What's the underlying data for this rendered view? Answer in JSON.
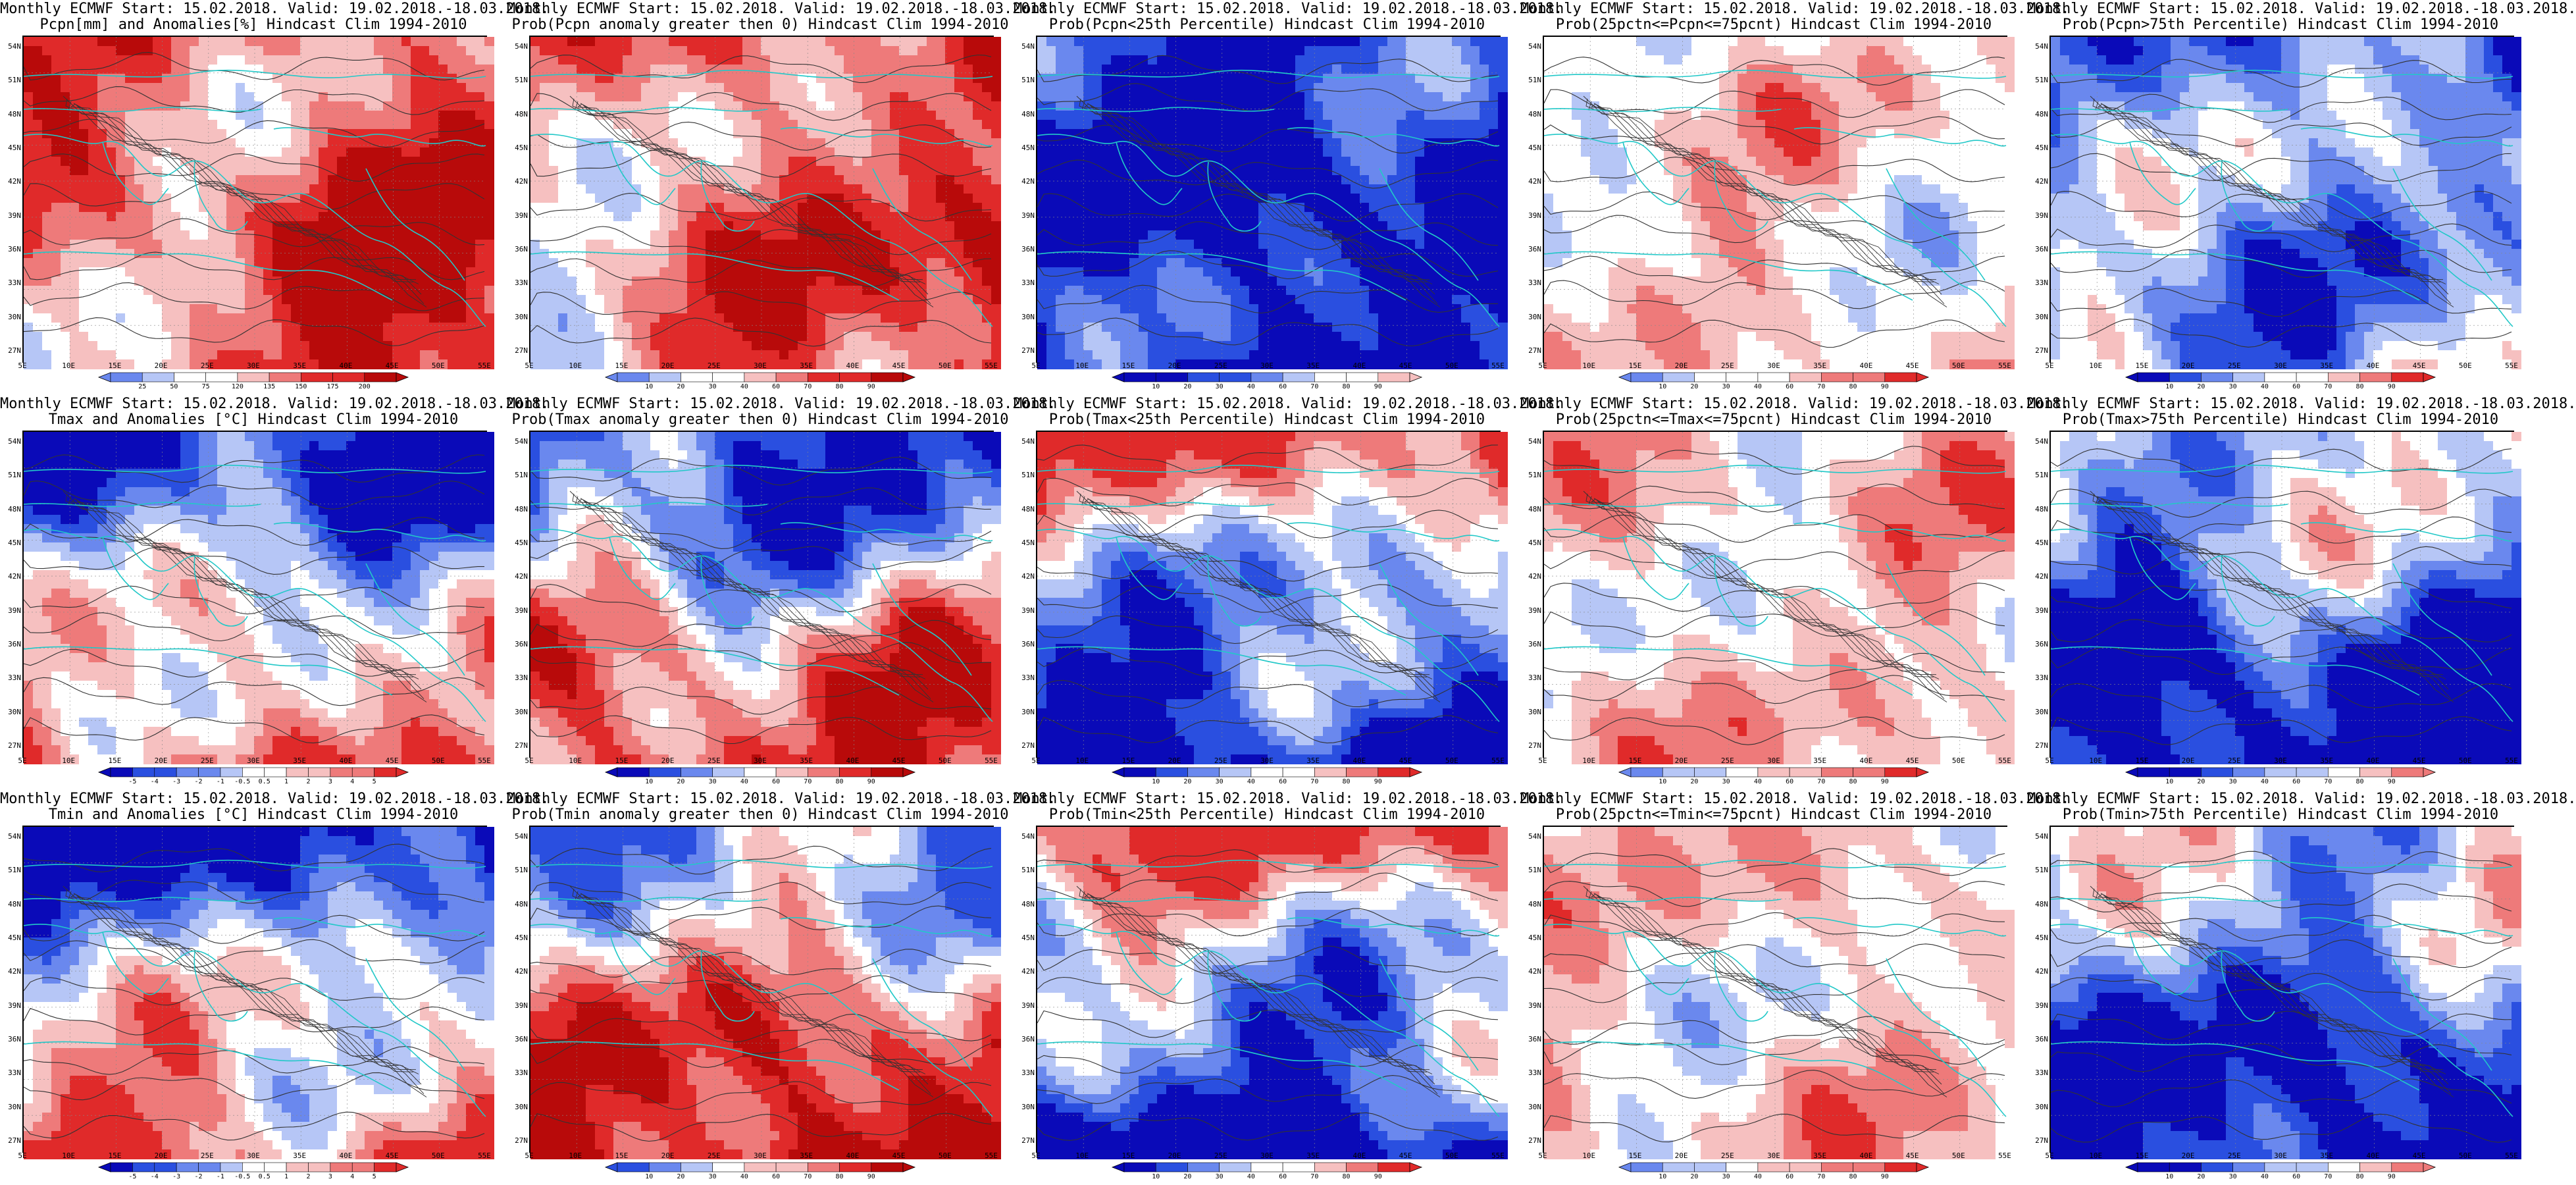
{
  "panels": [
    {
      "line1": "Monthly ECMWF Start: 15.02.2018. Valid: 19.02.2018.-18.03.2018.",
      "line2": "Pcpn[mm] and Anomalies[%] Hindcast Clim 1994-2010",
      "scheme": "pcpn_anom",
      "cbar_labels": [
        "25",
        "50",
        "75",
        "120",
        "135",
        "150",
        "175",
        "200"
      ]
    },
    {
      "line1": "Monthly ECMWF Start: 15.02.2018. Valid: 19.02.2018.-18.03.2018.",
      "line2": "Prob(Pcpn anomaly greater then 0) Hindcast Clim 1994-2010",
      "scheme": "prob_red",
      "cbar_labels": [
        "10",
        "20",
        "30",
        "40",
        "60",
        "70",
        "80",
        "90"
      ]
    },
    {
      "line1": "Monthly ECMWF Start: 15.02.2018. Valid: 19.02.2018.-18.03.2018.",
      "line2": "Prob(Pcpn<25th Percentile) Hindcast Clim 1994-2010",
      "scheme": "prob_blue",
      "cbar_labels": [
        "10",
        "20",
        "30",
        "40",
        "60",
        "70",
        "80",
        "90"
      ]
    },
    {
      "line1": "Monthly ECMWF Start: 15.02.2018. Valid: 19.02.2018.-18.03.2018.",
      "line2": "Prob(25pctn<=Pcpn<=75pcnt) Hindcast Clim 1994-2010",
      "scheme": "prob_mixed_light",
      "cbar_labels": [
        "10",
        "20",
        "30",
        "40",
        "60",
        "70",
        "80",
        "90"
      ]
    },
    {
      "line1": "Monthly ECMWF Start: 15.02.2018. Valid: 19.02.2018.-18.03.2018.",
      "line2": "Prob(Pcpn>75th Percentile) Hindcast Clim 1994-2010",
      "scheme": "prob_blue_red",
      "cbar_labels": [
        "10",
        "20",
        "30",
        "40",
        "60",
        "70",
        "80",
        "90"
      ]
    },
    {
      "line1": "Monthly ECMWF Start: 15.02.2018. Valid: 19.02.2018.-18.03.2018.",
      "line2": "Tmax and Anomalies [°C] Hindcast Clim 1994-2010",
      "scheme": "temp_anom",
      "cbar_labels": [
        "-5",
        "-4",
        "-3",
        "-2",
        "-1",
        "-0.5",
        "0.5",
        "1",
        "2",
        "3",
        "4",
        "5"
      ]
    },
    {
      "line1": "Monthly ECMWF Start: 15.02.2018. Valid: 19.02.2018.-18.03.2018.",
      "line2": "Prob(Tmax anomaly greater then 0) Hindcast Clim 1994-2010",
      "scheme": "temp_prob",
      "cbar_labels": [
        "10",
        "20",
        "30",
        "40",
        "60",
        "70",
        "80",
        "90"
      ]
    },
    {
      "line1": "Monthly ECMWF Start: 15.02.2018. Valid: 19.02.2018.-18.03.2018.",
      "line2": "Prob(Tmax<25th Percentile) Hindcast Clim 1994-2010",
      "scheme": "cold_low",
      "cbar_labels": [
        "10",
        "20",
        "30",
        "40",
        "60",
        "70",
        "80",
        "90"
      ]
    },
    {
      "line1": "Monthly ECMWF Start: 15.02.2018. Valid: 19.02.2018.-18.03.2018.",
      "line2": "Prob(25pctn<=Tmax<=75pcnt) Hindcast Clim 1994-2010",
      "scheme": "mid_mixed",
      "cbar_labels": [
        "10",
        "20",
        "30",
        "40",
        "60",
        "70",
        "80",
        "90"
      ]
    },
    {
      "line1": "Monthly ECMWF Start: 15.02.2018. Valid: 19.02.2018.-18.03.2018.",
      "line2": "Prob(Tmax>75th Percentile) Hindcast Clim 1994-2010",
      "scheme": "hot_high",
      "cbar_labels": [
        "10",
        "20",
        "30",
        "40",
        "60",
        "70",
        "80",
        "90"
      ]
    },
    {
      "line1": "Monthly ECMWF Start: 15.02.2018. Valid: 19.02.2018.-18.03.2018.",
      "line2": "Tmin and Anomalies [°C] Hindcast Clim 1994-2010",
      "scheme": "temp_anom",
      "cbar_labels": [
        "-5",
        "-4",
        "-3",
        "-2",
        "-1",
        "-0.5",
        "0.5",
        "1",
        "2",
        "3",
        "4",
        "5"
      ]
    },
    {
      "line1": "Monthly ECMWF Start: 15.02.2018. Valid: 19.02.2018.-18.03.2018.",
      "line2": "Prob(Tmin anomaly greater then 0) Hindcast Clim 1994-2010",
      "scheme": "temp_prob_strong",
      "cbar_labels": [
        "10",
        "20",
        "30",
        "40",
        "60",
        "70",
        "80",
        "90"
      ]
    },
    {
      "line1": "Monthly ECMWF Start: 15.02.2018. Valid: 19.02.2018.-18.03.2018.",
      "line2": "Prob(Tmin<25th Percentile) Hindcast Clim 1994-2010",
      "scheme": "cold_low",
      "cbar_labels": [
        "10",
        "20",
        "30",
        "40",
        "60",
        "70",
        "80",
        "90"
      ]
    },
    {
      "line1": "Monthly ECMWF Start: 15.02.2018. Valid: 19.02.2018.-18.03.2018.",
      "line2": "Prob(25pctn<=Tmin<=75pcnt) Hindcast Clim 1994-2010",
      "scheme": "mid_mixed",
      "cbar_labels": [
        "10",
        "20",
        "30",
        "40",
        "60",
        "70",
        "80",
        "90"
      ]
    },
    {
      "line1": "Monthly ECMWF Start: 15.02.2018. Valid: 19.02.2018.-18.03.2018.",
      "line2": "Prob(Tmin>75th Percentile) Hindcast Clim 1994-2010",
      "scheme": "hot_high",
      "cbar_labels": [
        "10",
        "20",
        "30",
        "40",
        "60",
        "70",
        "80",
        "90"
      ]
    }
  ],
  "lat_labels": [
    "54N",
    "51N",
    "48N",
    "45N",
    "42N",
    "39N",
    "36N",
    "33N",
    "30N",
    "27N"
  ],
  "lon_labels": [
    "5E",
    "10E",
    "15E",
    "20E",
    "25E",
    "30E",
    "35E",
    "40E",
    "45E",
    "50E",
    "55E"
  ],
  "colors": {
    "deep_blue": "#0a0ab8",
    "blue": "#2a4fe0",
    "mid_blue": "#6a88ee",
    "light_blue": "#b6c6f6",
    "white": "#ffffff",
    "light_red": "#f6c0c0",
    "mid_red": "#ee7a7a",
    "red": "#e02a2a",
    "deep_red": "#b80a0a",
    "coast": "#22c8c8",
    "contour": "#333333"
  }
}
